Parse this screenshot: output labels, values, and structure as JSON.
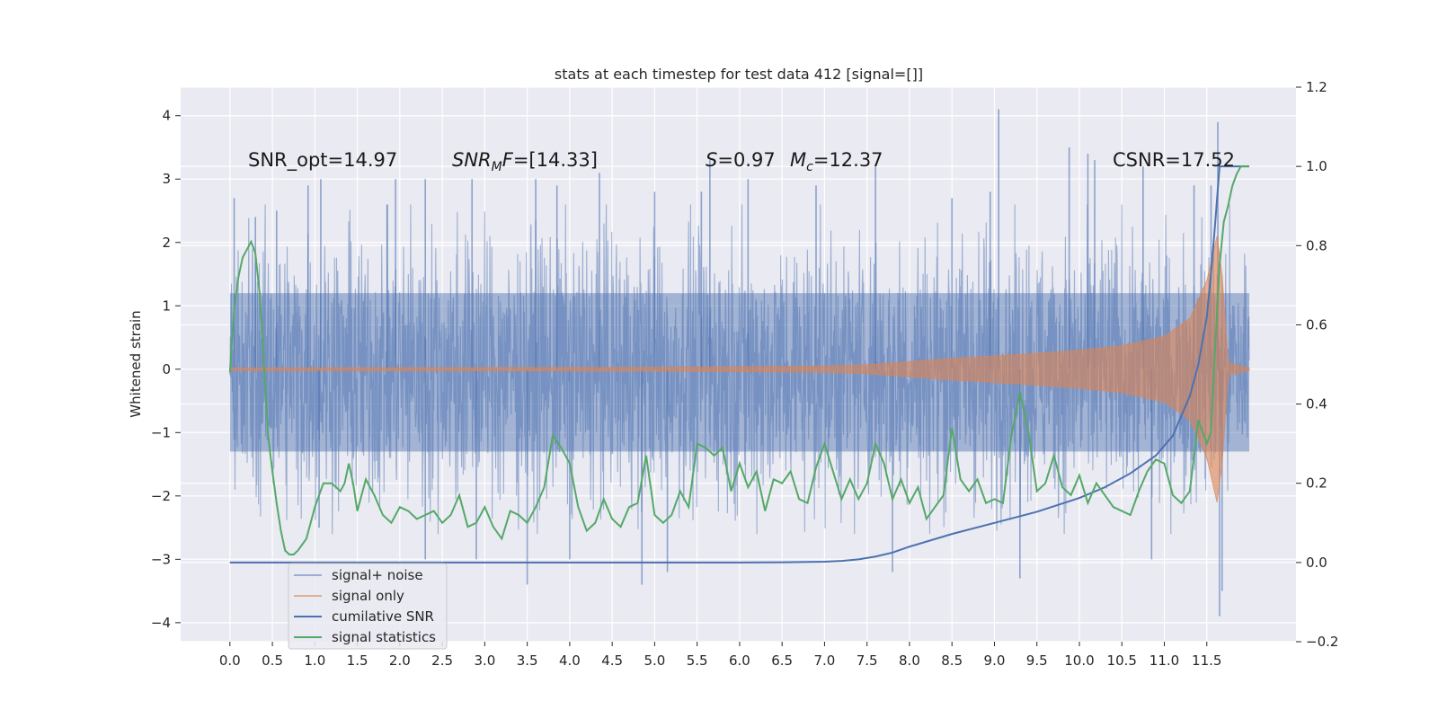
{
  "chart_data": {
    "type": "line",
    "title": "stats at each timestep for test data 412 [signal=[]]",
    "ylabel": "Whitened strain",
    "xlim": [
      -0.58,
      12.55
    ],
    "ylim": [
      -4.3,
      4.45
    ],
    "y2lim": [
      -0.2,
      1.2
    ],
    "x_ticks": [
      0.0,
      0.5,
      1.0,
      1.5,
      2.0,
      2.5,
      3.0,
      3.5,
      4.0,
      4.5,
      5.0,
      5.5,
      6.0,
      6.5,
      7.0,
      7.5,
      8.0,
      8.5,
      9.0,
      9.5,
      10.0,
      10.5,
      11.0,
      11.5
    ],
    "x_tick_labels": [
      "0.0",
      "0.5",
      "1.0",
      "1.5",
      "2.0",
      "2.5",
      "3.0",
      "3.5",
      "4.0",
      "4.5",
      "5.0",
      "5.5",
      "6.0",
      "6.5",
      "7.0",
      "7.5",
      "8.0",
      "8.5",
      "9.0",
      "9.5",
      "10.0",
      "10.5",
      "11.0",
      "11.5"
    ],
    "y_ticks": [
      4,
      3,
      2,
      1,
      0,
      -1,
      -2,
      -3,
      -4
    ],
    "y_tick_labels": [
      "4",
      "3",
      "2",
      "1",
      "0",
      "−1",
      "−2",
      "−3",
      "−4"
    ],
    "y2_ticks": [
      1.2,
      1.0,
      0.8,
      0.6,
      0.4,
      0.2,
      0.0,
      -0.2
    ],
    "y2_tick_labels": [
      "1.2",
      "1.0",
      "0.8",
      "0.6",
      "0.4",
      "0.2",
      "0.0",
      "−0.2"
    ],
    "grid": true,
    "legend_placement": "lower-left",
    "annotations": {
      "snr_opt": "SNR_opt=14.97",
      "snr_mf": "=[14.33]",
      "s_val": "=0.97",
      "mc_val": "=12.37",
      "csnr": "CSNR=17.52"
    },
    "series": [
      {
        "name": "signal+ noise",
        "axis": "left",
        "color": "#4c72b0",
        "opacity": 0.5,
        "kind": "noise",
        "x_range": [
          0.0,
          12.0
        ],
        "envelope_typical": 1.9,
        "spikes": [
          {
            "x": 0.05,
            "y": 2.7
          },
          {
            "x": 0.3,
            "y": 2.4
          },
          {
            "x": 0.55,
            "y": 2.5
          },
          {
            "x": 0.92,
            "y": 2.9
          },
          {
            "x": 1.05,
            "y": -2.5
          },
          {
            "x": 1.07,
            "y": 3.0
          },
          {
            "x": 1.85,
            "y": 2.6
          },
          {
            "x": 1.95,
            "y": 3.0
          },
          {
            "x": 2.3,
            "y": 3.0
          },
          {
            "x": 2.3,
            "y": -3.0
          },
          {
            "x": 2.85,
            "y": 3.0
          },
          {
            "x": 2.9,
            "y": -3.0
          },
          {
            "x": 3.5,
            "y": -3.4
          },
          {
            "x": 3.6,
            "y": 3.0
          },
          {
            "x": 3.85,
            "y": 2.9
          },
          {
            "x": 4.0,
            "y": -3.0
          },
          {
            "x": 4.35,
            "y": 3.1
          },
          {
            "x": 4.85,
            "y": -3.4
          },
          {
            "x": 5.0,
            "y": 2.8
          },
          {
            "x": 5.15,
            "y": -3.2
          },
          {
            "x": 5.55,
            "y": 2.8
          },
          {
            "x": 5.65,
            "y": 3.3
          },
          {
            "x": 6.1,
            "y": 3.0
          },
          {
            "x": 6.9,
            "y": 2.9
          },
          {
            "x": 7.6,
            "y": 3.2
          },
          {
            "x": 7.8,
            "y": -3.2
          },
          {
            "x": 8.5,
            "y": 2.7
          },
          {
            "x": 8.95,
            "y": 2.8
          },
          {
            "x": 9.05,
            "y": 4.1
          },
          {
            "x": 9.3,
            "y": -3.3
          },
          {
            "x": 9.88,
            "y": 3.5
          },
          {
            "x": 10.1,
            "y": 3.4
          },
          {
            "x": 10.18,
            "y": 3.3
          },
          {
            "x": 10.75,
            "y": 3.2
          },
          {
            "x": 10.85,
            "y": -3.0
          },
          {
            "x": 11.35,
            "y": 2.9
          },
          {
            "x": 11.55,
            "y": 2.9
          },
          {
            "x": 11.63,
            "y": 3.9
          },
          {
            "x": 11.65,
            "y": -3.9
          },
          {
            "x": 11.68,
            "y": -3.5
          }
        ]
      },
      {
        "name": "signal only",
        "axis": "left",
        "color": "#dd8452",
        "opacity": 0.6,
        "kind": "chirp",
        "x_range": [
          0.0,
          12.0
        ],
        "amplitude": [
          [
            0.0,
            0.02
          ],
          [
            5.0,
            0.03
          ],
          [
            7.0,
            0.05
          ],
          [
            7.5,
            0.07
          ],
          [
            8.0,
            0.12
          ],
          [
            8.5,
            0.17
          ],
          [
            9.0,
            0.21
          ],
          [
            9.5,
            0.25
          ],
          [
            10.0,
            0.3
          ],
          [
            10.5,
            0.37
          ],
          [
            11.0,
            0.52
          ],
          [
            11.3,
            0.8
          ],
          [
            11.5,
            1.4
          ],
          [
            11.62,
            2.1
          ],
          [
            11.68,
            1.5
          ],
          [
            11.75,
            0.1
          ],
          [
            12.0,
            0.02
          ]
        ]
      },
      {
        "name": "cumilative SNR",
        "axis": "right",
        "color": "#4c72b0",
        "points": [
          [
            0.0,
            0.0
          ],
          [
            6.0,
            0.0
          ],
          [
            6.5,
            0.0005
          ],
          [
            7.0,
            0.002
          ],
          [
            7.2,
            0.004
          ],
          [
            7.4,
            0.008
          ],
          [
            7.6,
            0.015
          ],
          [
            7.8,
            0.025
          ],
          [
            8.0,
            0.04
          ],
          [
            8.5,
            0.072
          ],
          [
            9.0,
            0.1
          ],
          [
            9.5,
            0.128
          ],
          [
            10.0,
            0.163
          ],
          [
            10.3,
            0.19
          ],
          [
            10.6,
            0.225
          ],
          [
            10.9,
            0.27
          ],
          [
            11.1,
            0.32
          ],
          [
            11.3,
            0.42
          ],
          [
            11.4,
            0.5
          ],
          [
            11.5,
            0.62
          ],
          [
            11.55,
            0.73
          ],
          [
            11.6,
            0.86
          ],
          [
            11.65,
            1.0
          ],
          [
            12.0,
            1.0
          ]
        ]
      },
      {
        "name": "signal statistics",
        "axis": "right",
        "color": "#55a868",
        "points": [
          [
            0.0,
            0.48
          ],
          [
            0.05,
            0.64
          ],
          [
            0.1,
            0.72
          ],
          [
            0.15,
            0.77
          ],
          [
            0.2,
            0.79
          ],
          [
            0.25,
            0.81
          ],
          [
            0.3,
            0.78
          ],
          [
            0.35,
            0.68
          ],
          [
            0.4,
            0.5
          ],
          [
            0.45,
            0.32
          ],
          [
            0.5,
            0.23
          ],
          [
            0.55,
            0.15
          ],
          [
            0.6,
            0.08
          ],
          [
            0.65,
            0.03
          ],
          [
            0.7,
            0.02
          ],
          [
            0.75,
            0.02
          ],
          [
            0.8,
            0.03
          ],
          [
            0.9,
            0.06
          ],
          [
            1.0,
            0.14
          ],
          [
            1.1,
            0.2
          ],
          [
            1.2,
            0.2
          ],
          [
            1.3,
            0.18
          ],
          [
            1.35,
            0.2
          ],
          [
            1.4,
            0.25
          ],
          [
            1.45,
            0.2
          ],
          [
            1.5,
            0.13
          ],
          [
            1.6,
            0.21
          ],
          [
            1.7,
            0.17
          ],
          [
            1.8,
            0.12
          ],
          [
            1.9,
            0.1
          ],
          [
            2.0,
            0.14
          ],
          [
            2.1,
            0.13
          ],
          [
            2.2,
            0.11
          ],
          [
            2.3,
            0.12
          ],
          [
            2.4,
            0.13
          ],
          [
            2.5,
            0.1
          ],
          [
            2.6,
            0.12
          ],
          [
            2.7,
            0.17
          ],
          [
            2.8,
            0.09
          ],
          [
            2.9,
            0.1
          ],
          [
            3.0,
            0.14
          ],
          [
            3.1,
            0.09
          ],
          [
            3.2,
            0.06
          ],
          [
            3.3,
            0.13
          ],
          [
            3.4,
            0.12
          ],
          [
            3.5,
            0.1
          ],
          [
            3.6,
            0.14
          ],
          [
            3.7,
            0.19
          ],
          [
            3.8,
            0.32
          ],
          [
            3.9,
            0.29
          ],
          [
            4.0,
            0.25
          ],
          [
            4.1,
            0.14
          ],
          [
            4.2,
            0.08
          ],
          [
            4.3,
            0.1
          ],
          [
            4.4,
            0.16
          ],
          [
            4.5,
            0.11
          ],
          [
            4.6,
            0.09
          ],
          [
            4.7,
            0.14
          ],
          [
            4.8,
            0.15
          ],
          [
            4.9,
            0.27
          ],
          [
            5.0,
            0.12
          ],
          [
            5.1,
            0.1
          ],
          [
            5.2,
            0.12
          ],
          [
            5.3,
            0.18
          ],
          [
            5.4,
            0.14
          ],
          [
            5.5,
            0.3
          ],
          [
            5.6,
            0.29
          ],
          [
            5.7,
            0.27
          ],
          [
            5.8,
            0.29
          ],
          [
            5.9,
            0.18
          ],
          [
            6.0,
            0.25
          ],
          [
            6.1,
            0.19
          ],
          [
            6.2,
            0.23
          ],
          [
            6.3,
            0.13
          ],
          [
            6.4,
            0.21
          ],
          [
            6.5,
            0.2
          ],
          [
            6.6,
            0.23
          ],
          [
            6.7,
            0.16
          ],
          [
            6.8,
            0.15
          ],
          [
            6.9,
            0.24
          ],
          [
            7.0,
            0.3
          ],
          [
            7.1,
            0.23
          ],
          [
            7.2,
            0.16
          ],
          [
            7.3,
            0.21
          ],
          [
            7.4,
            0.16
          ],
          [
            7.5,
            0.2
          ],
          [
            7.6,
            0.3
          ],
          [
            7.7,
            0.25
          ],
          [
            7.8,
            0.16
          ],
          [
            7.9,
            0.21
          ],
          [
            8.0,
            0.15
          ],
          [
            8.1,
            0.19
          ],
          [
            8.2,
            0.11
          ],
          [
            8.3,
            0.14
          ],
          [
            8.4,
            0.17
          ],
          [
            8.5,
            0.34
          ],
          [
            8.6,
            0.21
          ],
          [
            8.7,
            0.18
          ],
          [
            8.8,
            0.21
          ],
          [
            8.9,
            0.15
          ],
          [
            9.0,
            0.16
          ],
          [
            9.1,
            0.15
          ],
          [
            9.2,
            0.32
          ],
          [
            9.3,
            0.43
          ],
          [
            9.4,
            0.33
          ],
          [
            9.5,
            0.18
          ],
          [
            9.6,
            0.2
          ],
          [
            9.7,
            0.27
          ],
          [
            9.8,
            0.19
          ],
          [
            9.9,
            0.17
          ],
          [
            10.0,
            0.22
          ],
          [
            10.1,
            0.15
          ],
          [
            10.2,
            0.2
          ],
          [
            10.3,
            0.17
          ],
          [
            10.4,
            0.14
          ],
          [
            10.5,
            0.13
          ],
          [
            10.6,
            0.12
          ],
          [
            10.7,
            0.18
          ],
          [
            10.8,
            0.23
          ],
          [
            10.9,
            0.26
          ],
          [
            11.0,
            0.25
          ],
          [
            11.1,
            0.17
          ],
          [
            11.2,
            0.15
          ],
          [
            11.3,
            0.18
          ],
          [
            11.4,
            0.36
          ],
          [
            11.5,
            0.3
          ],
          [
            11.55,
            0.33
          ],
          [
            11.6,
            0.55
          ],
          [
            11.65,
            0.75
          ],
          [
            11.7,
            0.86
          ],
          [
            11.75,
            0.9
          ],
          [
            11.8,
            0.95
          ],
          [
            11.85,
            0.98
          ],
          [
            11.9,
            1.0
          ],
          [
            12.0,
            1.0
          ]
        ]
      }
    ]
  },
  "colors": {
    "plot_background": "#eaeaf2",
    "grid": "#ffffff",
    "text": "#262626"
  }
}
